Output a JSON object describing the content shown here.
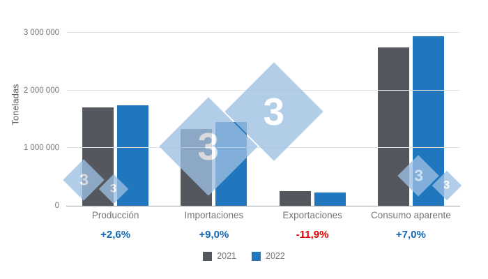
{
  "chart_data": {
    "type": "bar",
    "title": "",
    "xlabel": "",
    "ylabel": "Toneladas",
    "categories": [
      "Producción",
      "Importaciones",
      "Exportaciones",
      "Consumo aparente"
    ],
    "series": [
      {
        "name": "2021",
        "color": "#54585e",
        "values": [
          1700000,
          1330000,
          260000,
          2750000
        ]
      },
      {
        "name": "2022",
        "color": "#2077be",
        "values": [
          1744000,
          1450000,
          229000,
          2942000
        ]
      }
    ],
    "variation_labels": [
      {
        "text": "+2,6%",
        "color": "#1268b3"
      },
      {
        "text": "+9,0%",
        "color": "#1268b3"
      },
      {
        "text": "-11,9%",
        "color": "#e00000"
      },
      {
        "text": "+7,0%",
        "color": "#1268b3"
      }
    ],
    "ylim": [
      0,
      3000000
    ],
    "yticks": [
      {
        "value": 0,
        "label": "0"
      },
      {
        "value": 1000000,
        "label": "1 000 000"
      },
      {
        "value": 2000000,
        "label": "2 000 000"
      },
      {
        "value": 3000000,
        "label": "3 000 000"
      }
    ],
    "grid": true,
    "legend_position": "bottom"
  },
  "watermark": {
    "glyph": "3",
    "color": "#9dbfe2"
  }
}
